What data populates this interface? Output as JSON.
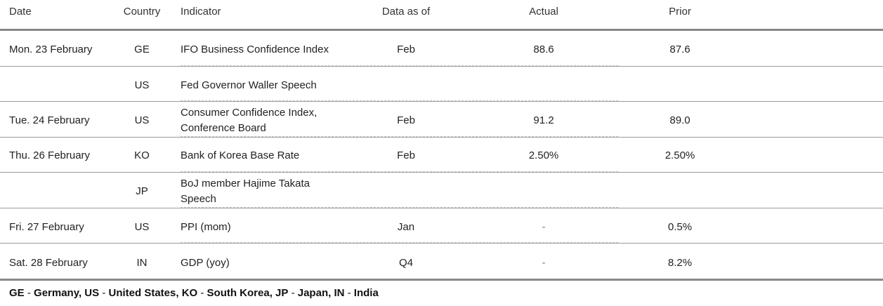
{
  "header": {
    "date": "Date",
    "country": "Country",
    "indicator": "Indicator",
    "data_as_of": "Data as of",
    "actual": "Actual",
    "prior": "Prior"
  },
  "rows": [
    {
      "date": "Mon. 23 February",
      "country": "GE",
      "indicator": "IFO Business Confidence Index",
      "data_as_of": "Feb",
      "actual": "88.6",
      "prior": "87.6"
    },
    {
      "date": "",
      "country": "US",
      "indicator": "Fed Governor Waller Speech",
      "data_as_of": "",
      "actual": "",
      "prior": ""
    },
    {
      "date": "Tue. 24 February",
      "country": "US",
      "indicator": "Consumer Confidence Index, Conference Board",
      "data_as_of": "Feb",
      "actual": "91.2",
      "prior": "89.0"
    },
    {
      "date": "Thu. 26 February",
      "country": "KO",
      "indicator": "Bank of Korea Base Rate",
      "data_as_of": "Feb",
      "actual": "2.50%",
      "prior": "2.50%"
    },
    {
      "date": "",
      "country": "JP",
      "indicator": "BoJ member Hajime Takata Speech",
      "data_as_of": "",
      "actual": "",
      "prior": ""
    },
    {
      "date": "Fri. 27 February",
      "country": "US",
      "indicator": "PPI (mom)",
      "data_as_of": "Jan",
      "actual": "-",
      "prior": "0.5%"
    },
    {
      "date": "Sat. 28 February",
      "country": "IN",
      "indicator": "GDP (yoy)",
      "data_as_of": "Q4",
      "actual": "-",
      "prior": "8.2%"
    }
  ],
  "footnote": {
    "ge_code": "GE",
    "ge_name": "Germany,",
    "us_code": "US",
    "us_name": "United States,",
    "ko_code": "KO",
    "ko_name": "South Korea,",
    "jp_code": "JP",
    "jp_name": "Japan,",
    "in_code": "IN",
    "in_name": "India",
    "separator": "-"
  }
}
